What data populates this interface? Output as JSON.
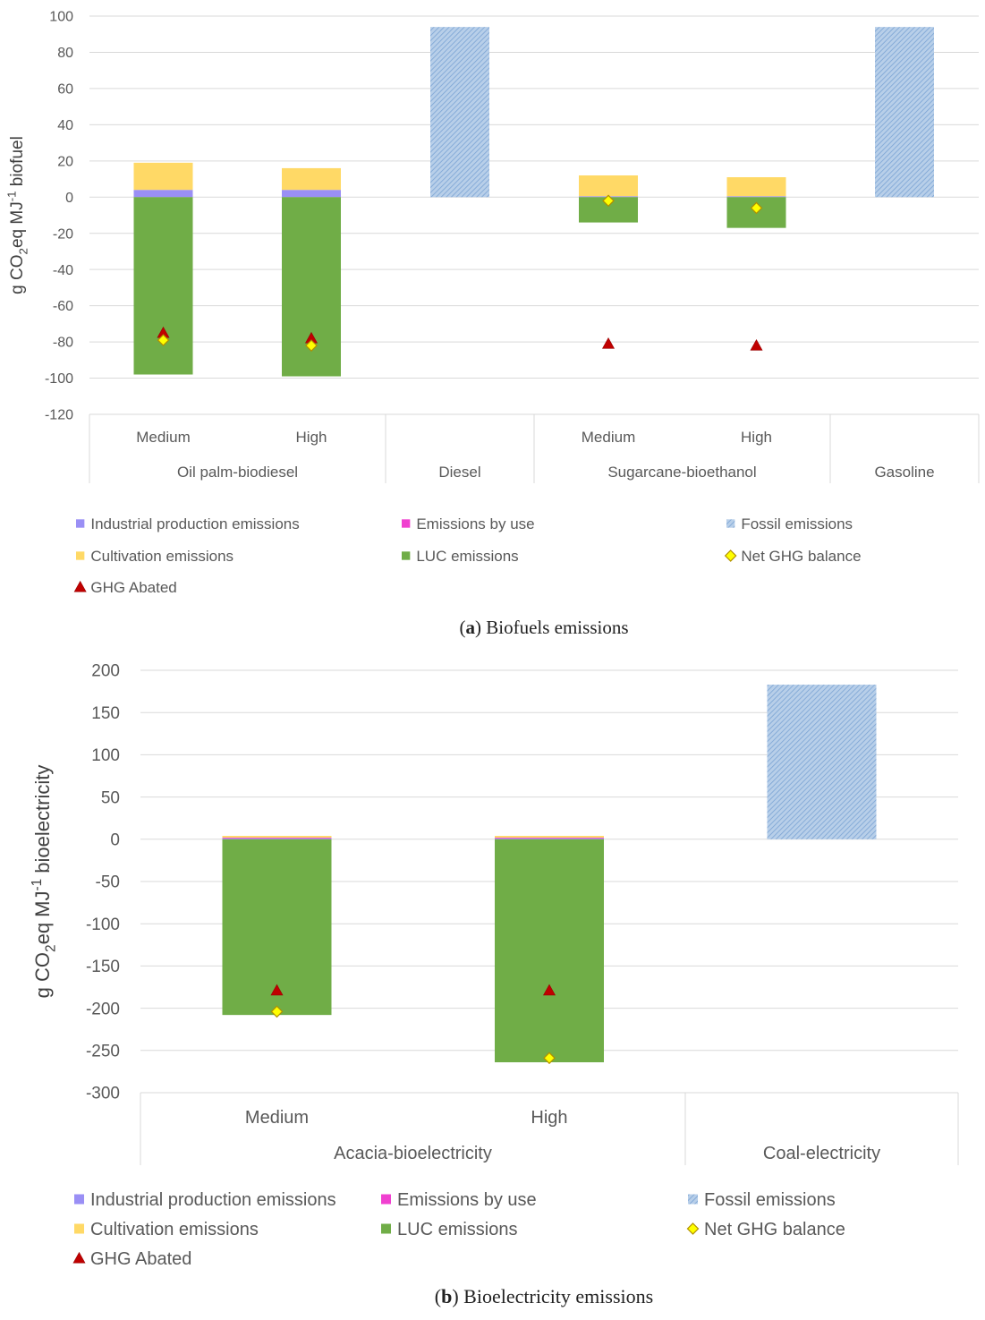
{
  "chart_data": [
    {
      "type": "bar",
      "subtype": "stacked",
      "caption_prefix": "(",
      "caption_letter": "a",
      "caption_text": ") Biofuels emissions",
      "ylabel": "g CO2eq MJ-1 biofuel",
      "ylabel_parts": {
        "a": "g CO",
        "sub": "2",
        "b": "eq MJ",
        "sup": "-1",
        "c": " biofuel"
      },
      "ylim": [
        -120,
        100
      ],
      "yticks": [
        100,
        80,
        60,
        40,
        20,
        0,
        -20,
        -40,
        -60,
        -80,
        -100,
        -120
      ],
      "categories": [
        "Medium",
        "High",
        "",
        "Medium",
        "High",
        ""
      ],
      "groups": [
        {
          "label": "Oil palm-biodiesel",
          "span": [
            0,
            1
          ]
        },
        {
          "label": "Diesel",
          "span": [
            2,
            2
          ]
        },
        {
          "label": "Sugarcane-bioethanol",
          "span": [
            3,
            4
          ]
        },
        {
          "label": "Gasoline",
          "span": [
            5,
            5
          ]
        }
      ],
      "series": [
        {
          "name": "Industrial production emissions",
          "kind": "bar",
          "color": "#9a8ff5",
          "values": [
            4,
            4,
            0,
            0.5,
            0.5,
            0
          ]
        },
        {
          "name": "Emissions by use",
          "kind": "bar",
          "color": "#f040d0",
          "values": [
            0,
            0,
            0,
            0,
            0,
            0
          ]
        },
        {
          "name": "Fossil emissions",
          "kind": "bar",
          "color": "#8db4e2",
          "hatched": true,
          "values": [
            0,
            0,
            94,
            0,
            0,
            94
          ]
        },
        {
          "name": "Cultivation emissions",
          "kind": "bar",
          "color": "#ffd966",
          "values": [
            15,
            12,
            0,
            11.5,
            10.5,
            0
          ]
        },
        {
          "name": "LUC emissions",
          "kind": "bar",
          "color": "#70ad47",
          "values": [
            -98,
            -99,
            0,
            -14,
            -17,
            0
          ]
        },
        {
          "name": "Net GHG balance",
          "kind": "diamond",
          "color": "#ffff00",
          "values": [
            -79,
            -82,
            null,
            -2,
            -6,
            null
          ]
        },
        {
          "name": "GHG Abated",
          "kind": "triangle",
          "color": "#c00000",
          "values": [
            -75,
            -78,
            null,
            -81,
            -82,
            null
          ]
        }
      ]
    },
    {
      "type": "bar",
      "subtype": "stacked",
      "caption_prefix": "(",
      "caption_letter": "b",
      "caption_text": ") Bioelectricity emissions",
      "ylabel": "g CO2eq MJ-1 bioelectricity",
      "ylabel_parts": {
        "a": "g CO",
        "sub": "2",
        "b": "eq MJ",
        "sup": "-1",
        "c": " bioelectricity"
      },
      "ylim": [
        -300,
        200
      ],
      "yticks": [
        200,
        150,
        100,
        50,
        0,
        -50,
        -100,
        -150,
        -200,
        -250,
        -300
      ],
      "categories": [
        "Medium",
        "High",
        ""
      ],
      "groups": [
        {
          "label": "Acacia-bioelectricity",
          "span": [
            0,
            1
          ]
        },
        {
          "label": "Coal-electricity",
          "span": [
            2,
            2
          ]
        }
      ],
      "series": [
        {
          "name": "Industrial production emissions",
          "kind": "bar",
          "color": "#9a8ff5",
          "values": [
            1,
            1,
            0
          ]
        },
        {
          "name": "Emissions by use",
          "kind": "bar",
          "color": "#f040d0",
          "values": [
            1,
            1,
            0
          ]
        },
        {
          "name": "Fossil emissions",
          "kind": "bar",
          "color": "#8db4e2",
          "hatched": true,
          "values": [
            0,
            0,
            183
          ]
        },
        {
          "name": "Cultivation emissions",
          "kind": "bar",
          "color": "#ffd966",
          "values": [
            2,
            2,
            0
          ]
        },
        {
          "name": "LUC emissions",
          "kind": "bar",
          "color": "#70ad47",
          "values": [
            -208,
            -264,
            0
          ]
        },
        {
          "name": "Net GHG balance",
          "kind": "diamond",
          "color": "#ffff00",
          "values": [
            -204,
            -259,
            null
          ]
        },
        {
          "name": "GHG Abated",
          "kind": "triangle",
          "color": "#c00000",
          "values": [
            -179,
            -179,
            null
          ]
        }
      ]
    }
  ]
}
